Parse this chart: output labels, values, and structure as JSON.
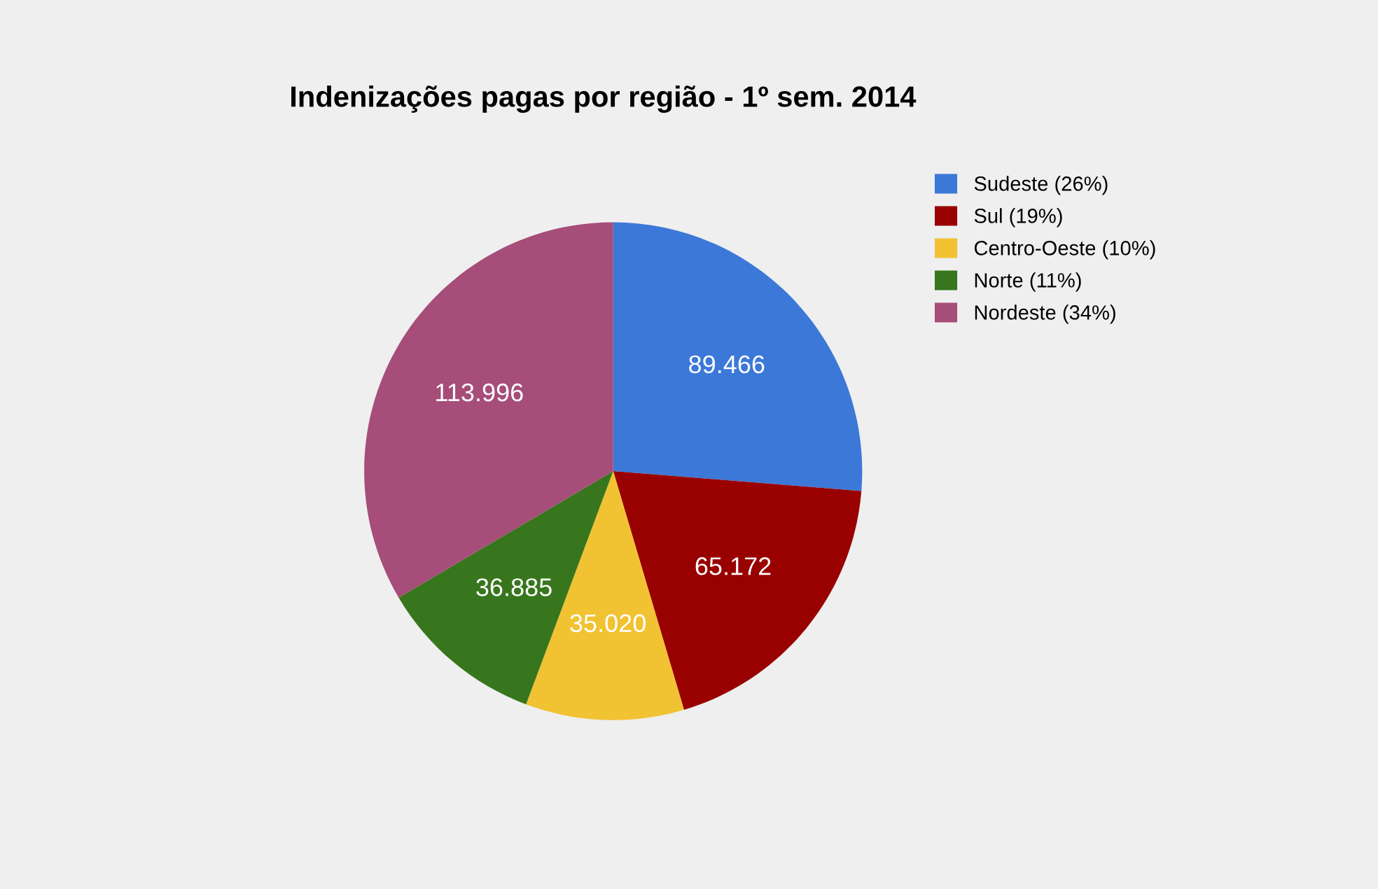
{
  "chart_data": {
    "type": "pie",
    "title": "Indenizações pagas por região - 1º sem. 2014",
    "categories": [
      "Sudeste (26%)",
      "Sul (19%)",
      "Centro-Oeste (10%)",
      "Norte (11%)",
      "Nordeste (34%)"
    ],
    "values": [
      89466,
      65172,
      35020,
      36885,
      113996
    ],
    "value_labels": [
      "89.466",
      "65.172",
      "35.020",
      "36.885",
      "113.996"
    ],
    "colors": [
      "#3c78d8",
      "#990000",
      "#f1c232",
      "#38761d",
      "#a64d79"
    ],
    "legend": "right"
  }
}
